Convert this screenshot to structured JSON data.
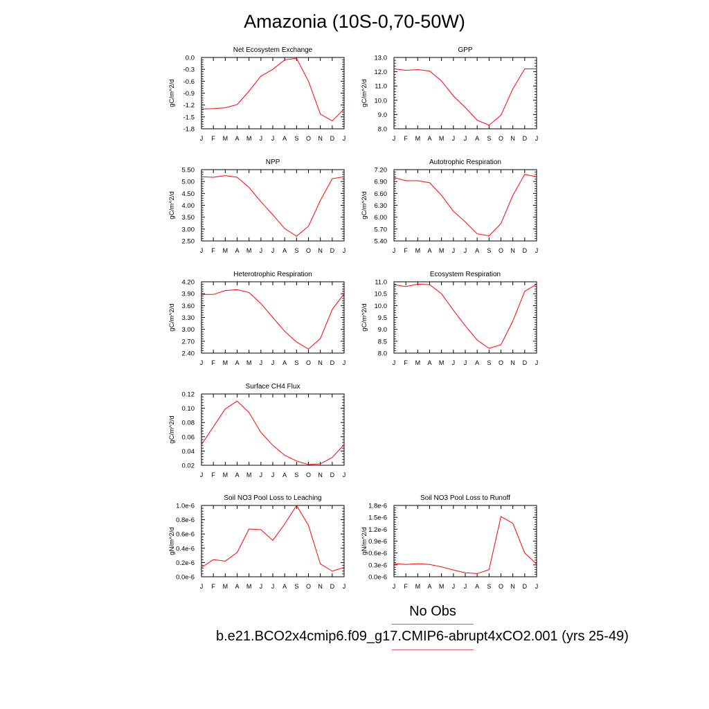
{
  "title": "Amazonia (10S-0,70-50W)",
  "legend": {
    "obs_label": "No Obs",
    "obs_color": "#6e6ee8",
    "case_label": "b.e21.BCO2x4cmip6.f09_g17.CMIP6-abrupt4xCO2.001 (yrs 25-49)",
    "case_color": "#e06060"
  },
  "line_color": "#ff0000",
  "chart_data": [
    {
      "type": "line",
      "title": "Net Ecosystem Exchange",
      "ylabel": "gC/m^2/d",
      "categories": [
        "J",
        "F",
        "M",
        "A",
        "M",
        "J",
        "J",
        "A",
        "S",
        "O",
        "N",
        "D",
        "J"
      ],
      "ylim": [
        -1.8,
        0.0
      ],
      "yticks": [
        0.0,
        -0.3,
        -0.6,
        -0.9,
        -1.2,
        -1.5,
        -1.8
      ],
      "ytick_labels": [
        "0.0",
        "-0.3",
        "-0.6",
        "-0.9",
        "-1.2",
        "-1.5",
        "-1.8"
      ],
      "values": [
        -1.3,
        -1.29,
        -1.27,
        -1.19,
        -0.85,
        -0.47,
        -0.3,
        -0.06,
        -0.02,
        -0.6,
        -1.43,
        -1.6,
        -1.3
      ]
    },
    {
      "type": "line",
      "title": "GPP",
      "ylabel": "gC/m^2/d",
      "categories": [
        "J",
        "F",
        "M",
        "A",
        "M",
        "J",
        "J",
        "A",
        "S",
        "O",
        "N",
        "D",
        "J"
      ],
      "ylim": [
        8.0,
        13.0
      ],
      "yticks": [
        13.0,
        12.0,
        11.0,
        10.0,
        9.0,
        8.0
      ],
      "ytick_labels": [
        "13.0",
        "12.0",
        "11.0",
        "10.0",
        "9.0",
        "8.0"
      ],
      "values": [
        12.2,
        12.1,
        12.15,
        12.05,
        11.35,
        10.3,
        9.5,
        8.6,
        8.25,
        8.95,
        10.8,
        12.2,
        12.2
      ]
    },
    {
      "type": "line",
      "title": "NPP",
      "ylabel": "gC/m^2/d",
      "categories": [
        "J",
        "F",
        "M",
        "A",
        "M",
        "J",
        "J",
        "A",
        "S",
        "O",
        "N",
        "D",
        "J"
      ],
      "ylim": [
        2.5,
        5.5
      ],
      "yticks": [
        5.5,
        5.0,
        4.5,
        4.0,
        3.5,
        3.0,
        2.5
      ],
      "ytick_labels": [
        "5.50",
        "5.00",
        "4.50",
        "4.00",
        "3.50",
        "3.00",
        "2.50"
      ],
      "values": [
        5.2,
        5.18,
        5.25,
        5.18,
        4.75,
        4.15,
        3.6,
        3.02,
        2.7,
        3.12,
        4.2,
        5.12,
        5.2
      ]
    },
    {
      "type": "line",
      "title": "Autotrophic Respiration",
      "ylabel": "gC/m^2/d",
      "categories": [
        "J",
        "F",
        "M",
        "A",
        "M",
        "J",
        "J",
        "A",
        "S",
        "O",
        "N",
        "D",
        "J"
      ],
      "ylim": [
        5.4,
        7.2
      ],
      "yticks": [
        7.2,
        6.9,
        6.6,
        6.3,
        6.0,
        5.7,
        5.4
      ],
      "ytick_labels": [
        "7.20",
        "6.90",
        "6.60",
        "6.30",
        "6.00",
        "5.70",
        "5.40"
      ],
      "values": [
        7.0,
        6.92,
        6.92,
        6.87,
        6.55,
        6.15,
        5.88,
        5.58,
        5.53,
        5.84,
        6.55,
        7.08,
        7.02
      ]
    },
    {
      "type": "line",
      "title": "Heterotrophic Respiration",
      "ylabel": "gC/m^2/d",
      "categories": [
        "J",
        "F",
        "M",
        "A",
        "M",
        "J",
        "J",
        "A",
        "S",
        "O",
        "N",
        "D",
        "J"
      ],
      "ylim": [
        2.4,
        4.2
      ],
      "yticks": [
        4.2,
        3.9,
        3.6,
        3.3,
        3.0,
        2.7,
        2.4
      ],
      "ytick_labels": [
        "4.20",
        "3.90",
        "3.60",
        "3.30",
        "3.00",
        "2.70",
        "2.40"
      ],
      "values": [
        3.88,
        3.88,
        3.98,
        4.0,
        3.93,
        3.65,
        3.3,
        2.95,
        2.68,
        2.5,
        2.77,
        3.5,
        3.9
      ]
    },
    {
      "type": "line",
      "title": "Ecosystem Respiration",
      "ylabel": "gC/m^2/d",
      "categories": [
        "J",
        "F",
        "M",
        "A",
        "M",
        "J",
        "J",
        "A",
        "S",
        "O",
        "N",
        "D",
        "J"
      ],
      "ylim": [
        8.0,
        11.0
      ],
      "yticks": [
        11.0,
        10.5,
        10.0,
        9.5,
        9.0,
        8.5,
        8.0
      ],
      "ytick_labels": [
        "11.0",
        "10.5",
        "10.0",
        "9.5",
        "9.0",
        "8.5",
        "8.0"
      ],
      "values": [
        10.88,
        10.8,
        10.9,
        10.88,
        10.5,
        9.8,
        9.15,
        8.55,
        8.2,
        8.35,
        9.35,
        10.6,
        10.9
      ]
    },
    {
      "type": "line",
      "title": "Surface CH4 Flux",
      "ylabel": "gC/m^2/d",
      "categories": [
        "J",
        "F",
        "M",
        "A",
        "M",
        "J",
        "J",
        "A",
        "S",
        "O",
        "N",
        "D",
        "J"
      ],
      "ylim": [
        0.02,
        0.12
      ],
      "yticks": [
        0.12,
        0.1,
        0.08,
        0.06,
        0.04,
        0.02
      ],
      "ytick_labels": [
        "0.12",
        "0.10",
        "0.08",
        "0.06",
        "0.04",
        "0.02"
      ],
      "values": [
        0.049,
        0.074,
        0.099,
        0.11,
        0.094,
        0.066,
        0.048,
        0.034,
        0.026,
        0.021,
        0.022,
        0.031,
        0.049
      ]
    },
    {
      "type": "line",
      "title": "Soil NO3 Pool Loss to Leaching",
      "ylabel": "gN/m^2/d",
      "categories": [
        "J",
        "F",
        "M",
        "A",
        "M",
        "J",
        "J",
        "A",
        "S",
        "O",
        "N",
        "D",
        "J"
      ],
      "ylim": [
        0.0,
        1e-06
      ],
      "yticks": [
        1e-06,
        8e-07,
        6e-07,
        4e-07,
        2e-07,
        0.0
      ],
      "ytick_labels": [
        "1.0e-6",
        "0.8e-6",
        "0.6e-6",
        "0.4e-6",
        "0.2e-6",
        "0.0e-6"
      ],
      "values": [
        1.3e-07,
        2.4e-07,
        2.2e-07,
        3.4e-07,
        6.7e-07,
        6.6e-07,
        5.1e-07,
        7.4e-07,
        1e-06,
        7.2e-07,
        1.8e-07,
        8e-08,
        1.3e-07
      ]
    },
    {
      "type": "line",
      "title": "Soil NO3 Pool Loss to Runoff",
      "ylabel": "gN/m^2/d",
      "categories": [
        "J",
        "F",
        "M",
        "A",
        "M",
        "J",
        "J",
        "A",
        "S",
        "O",
        "N",
        "D",
        "J"
      ],
      "ylim": [
        0.0,
        1.8e-06
      ],
      "yticks": [
        1.8e-06,
        1.5e-06,
        1.2e-06,
        9e-07,
        6e-07,
        3e-07,
        0.0
      ],
      "ytick_labels": [
        "1.8e-6",
        "1.5e-6",
        "1.2e-6",
        "0.9e-6",
        "0.6e-6",
        "0.3e-6",
        "0.0e-6"
      ],
      "values": [
        3.3e-07,
        3.1e-07,
        3.3e-07,
        3.1e-07,
        2.5e-07,
        1.7e-07,
        1e-07,
        8e-08,
        1.8e-07,
        1.52e-06,
        1.35e-06,
        6e-07,
        3.2e-07
      ]
    }
  ]
}
